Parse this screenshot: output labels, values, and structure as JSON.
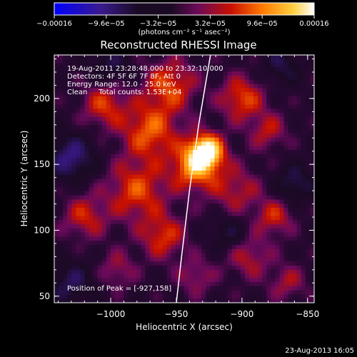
{
  "chart_data": {
    "type": "heatmap",
    "title": "Reconstructed RHESSI Image",
    "xlabel": "Heliocentric X (arcsec)",
    "ylabel": "Heliocentric Y (arcsec)",
    "xlim": [
      -1043,
      -845
    ],
    "ylim": [
      45,
      233
    ],
    "x_ticks": [
      {
        "value": -1000,
        "label": "−1000"
      },
      {
        "value": -950,
        "label": "−950"
      },
      {
        "value": -900,
        "label": "−900"
      },
      {
        "value": -850,
        "label": "−850"
      }
    ],
    "y_ticks": [
      {
        "value": 50,
        "label": "50"
      },
      {
        "value": 100,
        "label": "100"
      },
      {
        "value": 150,
        "label": "150"
      },
      {
        "value": 200,
        "label": "200"
      }
    ],
    "colorbar": {
      "range": [
        -0.00016,
        0.00016
      ],
      "tick_labels": [
        "−0.00016",
        "−9.6e−05",
        "−3.2e−05",
        "3.2e−05",
        "9.6e−05",
        "0.00016"
      ],
      "unit_label": "(photons cm⁻² s⁻¹ asec⁻²)",
      "colors": [
        "#0000ff",
        "#3a1a8c",
        "#1a0a24",
        "#6a0a5a",
        "#c81000",
        "#ff7a00",
        "#ffd040",
        "#ffffff"
      ]
    },
    "info_lines": [
      "19-Aug-2011 23:28:48.000 to 23:32:10.000",
      "Detectors: 4F 5F 6F 7F 8F, Att 0",
      "Energy Range: 12.0 - 25.0 keV",
      "Clean     Total counts: 1.53E+04"
    ],
    "peak_label": "Position of Peak = [-927,158]",
    "peak": {
      "x": -927,
      "y": 158
    },
    "limb_curve": [
      {
        "x": -924,
        "y": 233
      },
      {
        "x": -933,
        "y": 180
      },
      {
        "x": -940,
        "y": 130
      },
      {
        "x": -946,
        "y": 80
      },
      {
        "x": -950,
        "y": 45
      }
    ],
    "sources": [
      {
        "x": -927,
        "y": 160,
        "amp": 1.0,
        "w": 9
      },
      {
        "x": -936,
        "y": 148,
        "amp": 0.7,
        "w": 12
      },
      {
        "x": -970,
        "y": 175,
        "amp": 0.55,
        "w": 15
      },
      {
        "x": -1005,
        "y": 195,
        "amp": 0.45,
        "w": 12
      },
      {
        "x": -955,
        "y": 210,
        "amp": 0.5,
        "w": 14
      },
      {
        "x": -980,
        "y": 130,
        "amp": 0.5,
        "w": 16
      },
      {
        "x": -1020,
        "y": 110,
        "amp": 0.4,
        "w": 12
      },
      {
        "x": -960,
        "y": 95,
        "amp": 0.45,
        "w": 12
      },
      {
        "x": -995,
        "y": 70,
        "amp": 0.3,
        "w": 10
      },
      {
        "x": -900,
        "y": 200,
        "amp": 0.5,
        "w": 12
      },
      {
        "x": -880,
        "y": 175,
        "amp": 0.35,
        "w": 10
      },
      {
        "x": -905,
        "y": 130,
        "amp": 0.35,
        "w": 14
      },
      {
        "x": -875,
        "y": 110,
        "amp": 0.4,
        "w": 10
      },
      {
        "x": -895,
        "y": 80,
        "amp": 0.35,
        "w": 12
      },
      {
        "x": -865,
        "y": 60,
        "amp": 0.3,
        "w": 10
      },
      {
        "x": -935,
        "y": 65,
        "amp": 0.3,
        "w": 10
      },
      {
        "x": -1030,
        "y": 155,
        "amp": -0.5,
        "w": 12
      },
      {
        "x": -1030,
        "y": 60,
        "amp": -0.35,
        "w": 12
      },
      {
        "x": -870,
        "y": 225,
        "amp": -0.3,
        "w": 10
      },
      {
        "x": -860,
        "y": 135,
        "amp": -0.35,
        "w": 10
      },
      {
        "x": -910,
        "y": 98,
        "amp": -0.3,
        "w": 10
      },
      {
        "x": -1000,
        "y": 225,
        "amp": -0.3,
        "w": 10
      }
    ]
  },
  "footer": {
    "date": "23-Aug-2013 16:05"
  }
}
